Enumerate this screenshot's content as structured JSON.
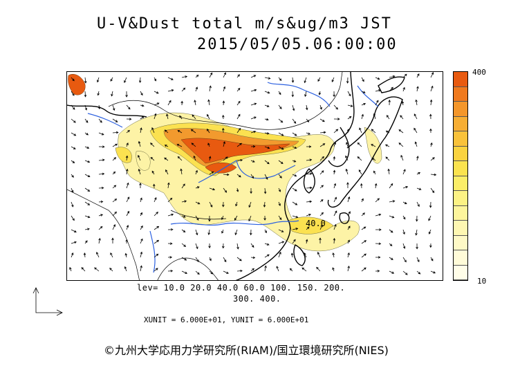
{
  "title": {
    "line1": "U-V&Dust total m/s&ug/m3 JST",
    "line2": "2015/05/05.06:00:00"
  },
  "colorbar": {
    "max_label": "400",
    "min_label": "10",
    "colors": [
      "#e85a10",
      "#f07a1e",
      "#f4962a",
      "#f7ae34",
      "#f9c23a",
      "#fad340",
      "#fbe34e",
      "#fbee68",
      "#fcf284",
      "#fdf59c",
      "#fef7b2",
      "#fef9c6",
      "#fffbd8",
      "#fffde8"
    ]
  },
  "contour_label": "40.0",
  "levels_line1": "lev= 10.0 20.0 40.0 60.0 100. 150. 200.",
  "levels_line2": "300. 400.",
  "units_line": "XUNIT = 6.000E+01, YUNIT = 6.000E+01",
  "copyright": "©九州大学応用力学研究所(RIAM)/国立環境研究所(NIES)",
  "colors": {
    "coast": "#000000",
    "river": "#2a5fe0",
    "dust_high": "#e85a10",
    "dust_low": "#fef7b2"
  }
}
